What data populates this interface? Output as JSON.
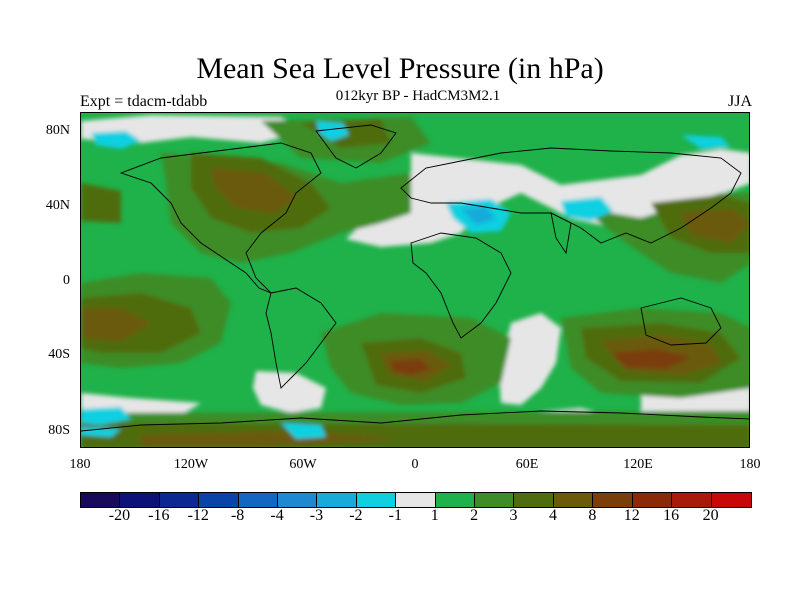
{
  "title": "Mean Sea Level Pressure (in hPa)",
  "subtitle": "012kyr BP - HadCM3M2.1",
  "experiment_label": "Expt = tdacm-tdabb",
  "season_label": "JJA",
  "latitude_labels": [
    "80N",
    "40N",
    "0",
    "40S",
    "80S"
  ],
  "longitude_labels": [
    "180",
    "120W",
    "60W",
    "0",
    "60E",
    "120E",
    "180"
  ],
  "colorbar": {
    "colors": [
      "#1a0a5c",
      "#0c1278",
      "#0a2a92",
      "#0a44a8",
      "#1466c0",
      "#1e88d0",
      "#18aad8",
      "#10d0e0",
      "#e6e6e6",
      "#1fb14a",
      "#3d8c27",
      "#4f6c10",
      "#6a5a0a",
      "#7a3e0a",
      "#8a2a08",
      "#a81a0a",
      "#c80808"
    ],
    "labels": [
      "-20",
      "-16",
      "-12",
      "-8",
      "-4",
      "-3",
      "-2",
      "-1",
      "1",
      "2",
      "3",
      "4",
      "8",
      "12",
      "16",
      "20"
    ]
  },
  "colors": {
    "light_gray": "#e6e6e6",
    "green": "#1fb14a",
    "olive_green": "#3d8c27",
    "olive": "#4f6c10",
    "brown": "#6a5a0a",
    "dark_brown": "#7a3e0a",
    "red_brown": "#8a2a08",
    "cyan": "#10d0e0",
    "light_blue": "#18aad8"
  }
}
